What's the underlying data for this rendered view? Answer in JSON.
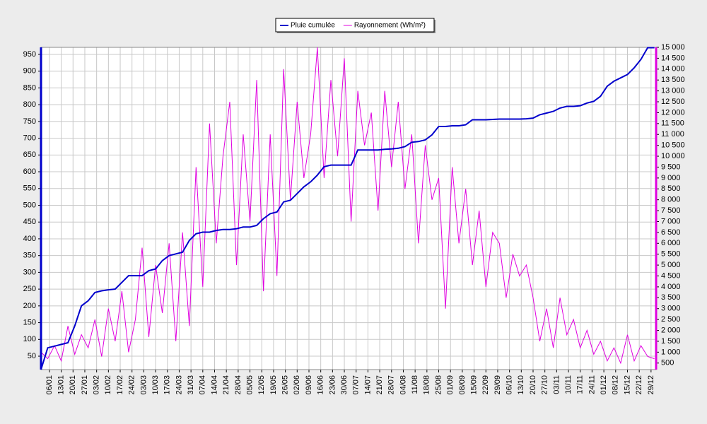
{
  "chart_data": {
    "type": "line",
    "x": [
      1,
      5,
      9,
      13,
      17,
      21,
      25,
      29,
      33,
      37,
      41,
      45,
      49,
      53,
      57,
      61,
      65,
      69,
      73,
      77,
      81,
      85,
      89,
      93,
      97,
      101,
      105,
      109,
      113,
      117,
      121,
      125,
      129,
      133,
      137,
      141,
      145,
      149,
      153,
      157,
      161,
      165,
      169,
      173,
      177,
      181,
      185,
      189,
      193,
      197,
      201,
      205,
      209,
      213,
      217,
      221,
      225,
      229,
      233,
      237,
      241,
      245,
      249,
      253,
      257,
      261,
      265,
      269,
      273,
      277,
      281,
      285,
      289,
      293,
      297,
      301,
      305,
      309,
      313,
      317,
      321,
      325,
      329,
      333,
      337,
      341,
      345,
      349,
      353,
      357,
      361,
      365
    ],
    "series": [
      {
        "name": "Pluie cumulée",
        "color": "#0000cc",
        "axis": "y",
        "values": [
          10,
          75,
          80,
          85,
          90,
          140,
          200,
          215,
          240,
          245,
          248,
          250,
          270,
          290,
          290,
          290,
          305,
          310,
          335,
          350,
          355,
          360,
          395,
          415,
          420,
          420,
          425,
          428,
          428,
          430,
          435,
          435,
          440,
          460,
          475,
          480,
          510,
          515,
          535,
          555,
          570,
          590,
          615,
          620,
          620,
          620,
          620,
          665,
          665,
          665,
          665,
          667,
          668,
          670,
          675,
          688,
          690,
          695,
          710,
          735,
          735,
          737,
          737,
          740,
          755,
          755,
          755,
          756,
          757,
          757,
          757,
          757,
          758,
          760,
          770,
          775,
          780,
          790,
          795,
          795,
          797,
          805,
          810,
          825,
          855,
          870,
          880,
          890,
          910,
          935,
          970,
          970
        ]
      },
      {
        "name": "Rayonnement (Wh/m²)",
        "color": "#e000e0",
        "axis": "y2",
        "values": [
          1000,
          700,
          1300,
          600,
          2200,
          900,
          1800,
          1200,
          2500,
          800,
          3000,
          1500,
          3800,
          1000,
          2500,
          5800,
          1700,
          5000,
          2800,
          6000,
          1500,
          6500,
          2200,
          9500,
          4000,
          11500,
          6000,
          10000,
          12500,
          5000,
          11000,
          7000,
          13500,
          3800,
          11000,
          4500,
          14000,
          8000,
          12500,
          9000,
          11000,
          15000,
          9000,
          13500,
          10000,
          14500,
          7000,
          13000,
          10500,
          12000,
          7500,
          13000,
          9500,
          12500,
          8500,
          11000,
          6000,
          10500,
          8000,
          9000,
          3000,
          9500,
          6000,
          8500,
          5000,
          7500,
          4000,
          6500,
          6000,
          3500,
          5500,
          4500,
          5000,
          3500,
          1500,
          3000,
          1200,
          3500,
          1800,
          2500,
          1200,
          2000,
          900,
          1500,
          600,
          1200,
          500,
          1800,
          600,
          1300,
          800,
          700
        ]
      }
    ],
    "xlim": [
      1,
      366
    ],
    "xticks": [
      {
        "value": 6,
        "label": "06/01"
      },
      {
        "value": 13,
        "label": "13/01"
      },
      {
        "value": 20,
        "label": "20/01"
      },
      {
        "value": 27,
        "label": "27/01"
      },
      {
        "value": 34,
        "label": "03/02"
      },
      {
        "value": 41,
        "label": "10/02"
      },
      {
        "value": 48,
        "label": "17/02"
      },
      {
        "value": 55,
        "label": "24/02"
      },
      {
        "value": 62,
        "label": "03/03"
      },
      {
        "value": 69,
        "label": "10/03"
      },
      {
        "value": 76,
        "label": "17/03"
      },
      {
        "value": 83,
        "label": "24/03"
      },
      {
        "value": 90,
        "label": "31/03"
      },
      {
        "value": 97,
        "label": "07/04"
      },
      {
        "value": 104,
        "label": "14/04"
      },
      {
        "value": 111,
        "label": "21/04"
      },
      {
        "value": 118,
        "label": "28/04"
      },
      {
        "value": 125,
        "label": "05/05"
      },
      {
        "value": 132,
        "label": "12/05"
      },
      {
        "value": 139,
        "label": "19/05"
      },
      {
        "value": 146,
        "label": "26/05"
      },
      {
        "value": 153,
        "label": "02/06"
      },
      {
        "value": 160,
        "label": "09/06"
      },
      {
        "value": 167,
        "label": "16/06"
      },
      {
        "value": 174,
        "label": "23/06"
      },
      {
        "value": 181,
        "label": "30/06"
      },
      {
        "value": 188,
        "label": "07/07"
      },
      {
        "value": 195,
        "label": "14/07"
      },
      {
        "value": 202,
        "label": "21/07"
      },
      {
        "value": 209,
        "label": "28/07"
      },
      {
        "value": 216,
        "label": "04/08"
      },
      {
        "value": 223,
        "label": "11/08"
      },
      {
        "value": 230,
        "label": "18/08"
      },
      {
        "value": 237,
        "label": "25/08"
      },
      {
        "value": 244,
        "label": "01/09"
      },
      {
        "value": 251,
        "label": "08/09"
      },
      {
        "value": 258,
        "label": "15/09"
      },
      {
        "value": 265,
        "label": "22/09"
      },
      {
        "value": 272,
        "label": "29/09"
      },
      {
        "value": 279,
        "label": "06/10"
      },
      {
        "value": 286,
        "label": "13/10"
      },
      {
        "value": 293,
        "label": "20/10"
      },
      {
        "value": 300,
        "label": "27/10"
      },
      {
        "value": 307,
        "label": "03/11"
      },
      {
        "value": 314,
        "label": "10/11"
      },
      {
        "value": 321,
        "label": "17/11"
      },
      {
        "value": 328,
        "label": "24/11"
      },
      {
        "value": 335,
        "label": "01/12"
      },
      {
        "value": 342,
        "label": "08/12"
      },
      {
        "value": 349,
        "label": "15/12"
      },
      {
        "value": 356,
        "label": "22/12"
      },
      {
        "value": 363,
        "label": "29/12"
      }
    ],
    "ylim": [
      10,
      971
    ],
    "yticks": [
      50,
      100,
      150,
      200,
      250,
      300,
      350,
      400,
      450,
      500,
      550,
      600,
      650,
      700,
      750,
      800,
      850,
      900,
      950
    ],
    "y2lim": [
      200,
      15000
    ],
    "y2ticks": [
      {
        "value": 500,
        "label": "500"
      },
      {
        "value": 1000,
        "label": "1 000"
      },
      {
        "value": 1500,
        "label": "1 500"
      },
      {
        "value": 2000,
        "label": "2 000"
      },
      {
        "value": 2500,
        "label": "2 500"
      },
      {
        "value": 3000,
        "label": "3 000"
      },
      {
        "value": 3500,
        "label": "3 500"
      },
      {
        "value": 4000,
        "label": "4 000"
      },
      {
        "value": 4500,
        "label": "4 500"
      },
      {
        "value": 5000,
        "label": "5 000"
      },
      {
        "value": 5500,
        "label": "5 500"
      },
      {
        "value": 6000,
        "label": "6 000"
      },
      {
        "value": 6500,
        "label": "6 500"
      },
      {
        "value": 7000,
        "label": "7 000"
      },
      {
        "value": 7500,
        "label": "7 500"
      },
      {
        "value": 8000,
        "label": "8 000"
      },
      {
        "value": 8500,
        "label": "8 500"
      },
      {
        "value": 9000,
        "label": "9 000"
      },
      {
        "value": 9500,
        "label": "9 500"
      },
      {
        "value": 10000,
        "label": "10 000"
      },
      {
        "value": 10500,
        "label": "10 500"
      },
      {
        "value": 11000,
        "label": "11 000"
      },
      {
        "value": 11500,
        "label": "11 500"
      },
      {
        "value": 12000,
        "label": "12 000"
      },
      {
        "value": 12500,
        "label": "12 500"
      },
      {
        "value": 13000,
        "label": "13 000"
      },
      {
        "value": 13500,
        "label": "13 500"
      },
      {
        "value": 14000,
        "label": "14 000"
      },
      {
        "value": 14500,
        "label": "14 500"
      },
      {
        "value": 15000,
        "label": "15 000"
      }
    ],
    "grid": true,
    "legend": "top"
  }
}
